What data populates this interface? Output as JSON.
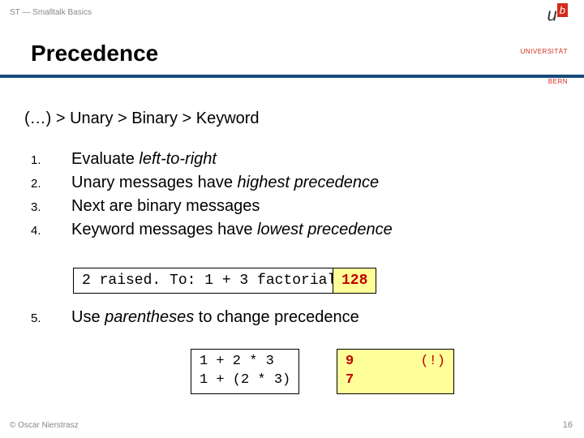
{
  "header": "ST — Smalltalk Basics",
  "title": "Precedence",
  "logo": {
    "u": "u",
    "b": "b",
    "uni1": "UNIVERSITÄT",
    "uni2": "BERN"
  },
  "precedence_rule": "(…) > Unary > Binary > Keyword",
  "items": [
    {
      "num": "1.",
      "pre": "Evaluate ",
      "em": "left-to-right",
      "post": ""
    },
    {
      "num": "2.",
      "pre": "Unary messages have ",
      "em": "highest precedence",
      "post": ""
    },
    {
      "num": "3.",
      "pre": "Next are binary messages",
      "em": "",
      "post": ""
    },
    {
      "num": "4.",
      "pre": "Keyword messages have ",
      "em": "lowest precedence",
      "post": ""
    }
  ],
  "code1": "2 raised. To: 1 + 3 factorial",
  "result1": "128",
  "item5": {
    "num": "5.",
    "pre": "Use ",
    "em": "parentheses",
    "post": " to change precedence"
  },
  "code2_line1": "1 + 2 * 3",
  "code2_line2": "1 + (2 * 3)",
  "result2_line1": "9",
  "result2_line1_right": "(!)",
  "result2_line2": "7",
  "copyright": "© Oscar Nierstrasz",
  "pagenum": "16",
  "colors": {
    "underline": "#174a7c",
    "result_bg": "#ffff99",
    "result_fg": "#c00000",
    "logo_red": "#d52b1e"
  }
}
